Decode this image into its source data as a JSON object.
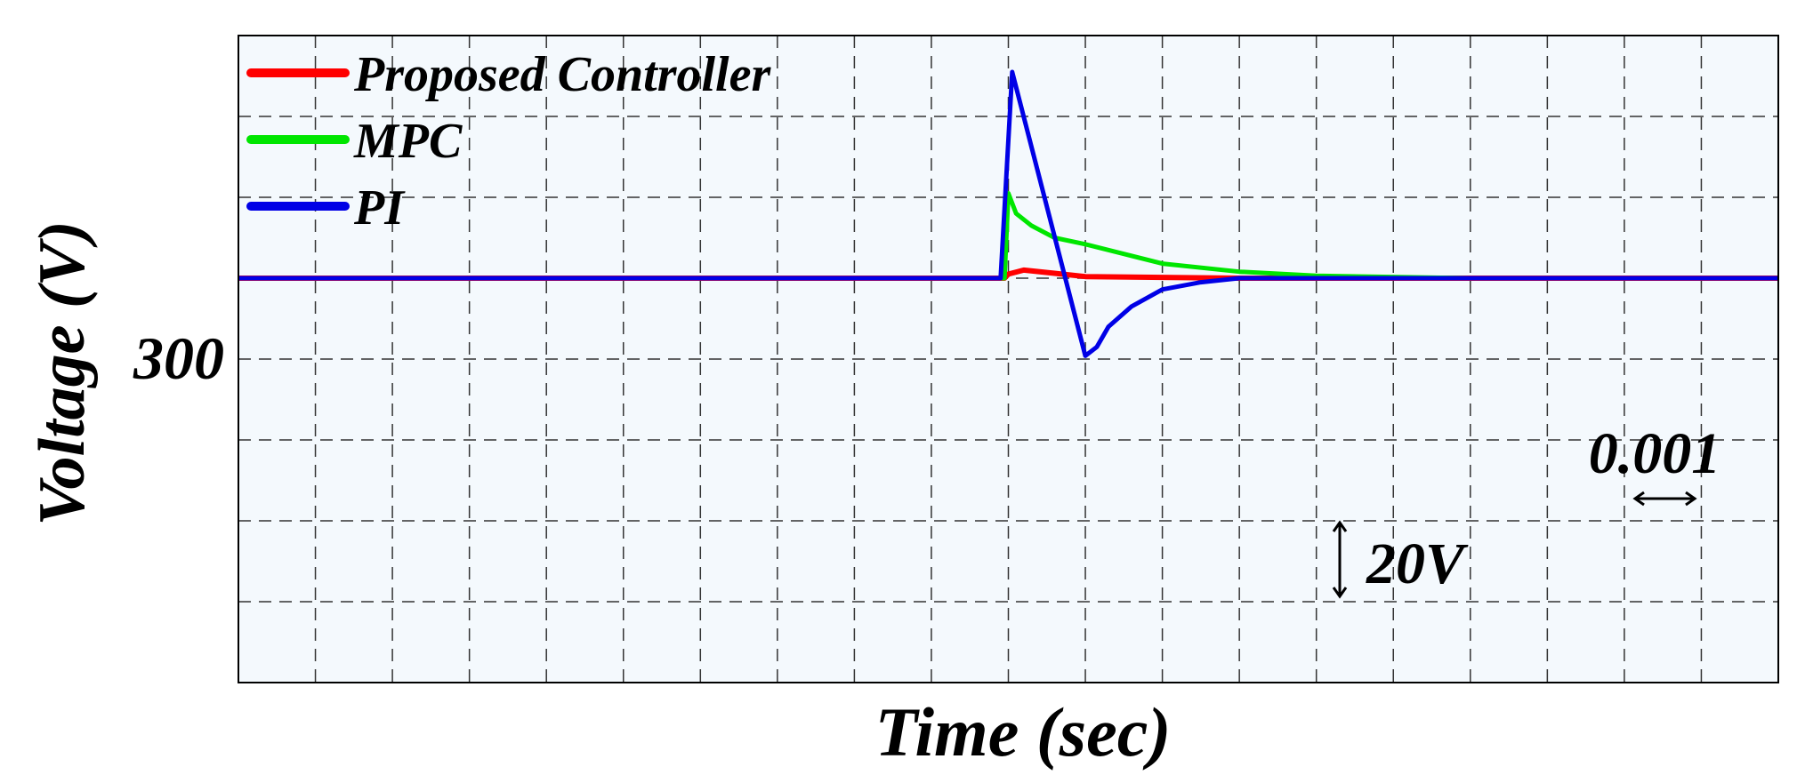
{
  "chart_data": {
    "type": "line",
    "title": "",
    "xlabel": "Time (sec)",
    "ylabel": "Voltage (V)",
    "ytick_label": "300",
    "y_reference": 300,
    "grid": true,
    "grid_style": "dashed",
    "legend_position": "top-left",
    "x_range": [
      0,
      0.02
    ],
    "y_range": [
      250,
      330
    ],
    "annotations": {
      "time_scale": "0.001",
      "voltage_scale": "20V"
    },
    "series": [
      {
        "name": "Proposed Controller",
        "color": "#ff0000",
        "x": [
          0,
          0.004,
          0.008,
          0.00995,
          0.01,
          0.0102,
          0.0106,
          0.011,
          0.013,
          0.016,
          0.02
        ],
        "y": [
          300,
          300,
          300,
          300,
          300.5,
          301.0,
          300.6,
          300.2,
          300,
          300,
          300
        ]
      },
      {
        "name": "MPC",
        "color": "#00e600",
        "x": [
          0,
          0.008,
          0.00995,
          0.01,
          0.0101,
          0.0103,
          0.0106,
          0.011,
          0.0115,
          0.012,
          0.013,
          0.014,
          0.016,
          0.02
        ],
        "y": [
          300,
          300,
          300,
          310.5,
          308.0,
          306.5,
          305.0,
          304.2,
          303.0,
          301.8,
          300.8,
          300.3,
          300,
          300
        ]
      },
      {
        "name": "PI",
        "color": "#0000e6",
        "x": [
          0,
          0.006,
          0.008,
          0.0099,
          0.01005,
          0.011,
          0.01115,
          0.0113,
          0.0116,
          0.012,
          0.0125,
          0.013,
          0.016,
          0.02
        ],
        "y": [
          300,
          300,
          300,
          300,
          325.5,
          290.4,
          291.5,
          294.0,
          296.5,
          298.6,
          299.5,
          300,
          300,
          300
        ]
      }
    ]
  }
}
